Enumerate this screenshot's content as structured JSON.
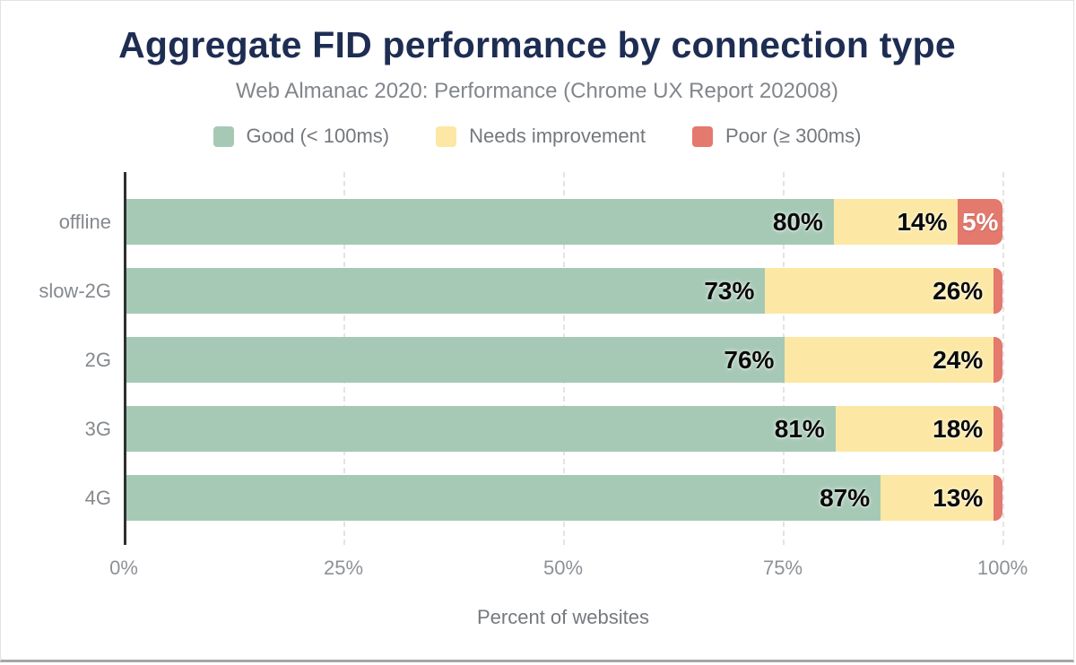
{
  "header": {
    "title": "Aggregate FID performance by connection type",
    "subtitle": "Web Almanac 2020: Performance (Chrome UX Report 202008)"
  },
  "colors": {
    "good": "#a6c9b5",
    "needs_improvement": "#fce8a4",
    "poor": "#e4796d",
    "title_text": "#1e2d52",
    "axis_text": "#8d9196",
    "grid": "#e4e4e4"
  },
  "legend": [
    {
      "key": "good",
      "label": "Good (< 100ms)",
      "color": "#a6c9b5"
    },
    {
      "key": "needs_improvement",
      "label": "Needs improvement",
      "color": "#fce8a4"
    },
    {
      "key": "poor",
      "label": "Poor (≥ 300ms)",
      "color": "#e4796d"
    }
  ],
  "chart_data": {
    "type": "bar",
    "orientation": "horizontal",
    "stacked": true,
    "title": "Aggregate FID performance by connection type",
    "subtitle": "Web Almanac 2020: Performance (Chrome UX Report 202008)",
    "categories": [
      "offline",
      "slow-2G",
      "2G",
      "3G",
      "4G"
    ],
    "series": [
      {
        "name": "Good (< 100ms)",
        "key": "good",
        "color": "#a6c9b5",
        "align": "right",
        "values": [
          80,
          73,
          76,
          81,
          87
        ]
      },
      {
        "name": "Needs improvement",
        "key": "needs_improvement",
        "color": "#fce8a4",
        "align": "right",
        "values": [
          14,
          26,
          24,
          18,
          13
        ]
      },
      {
        "name": "Poor (≥ 300ms)",
        "key": "poor",
        "color": "#e4796d",
        "align": "center",
        "values": [
          5,
          1,
          1,
          1,
          1
        ]
      }
    ],
    "segment_labels": [
      [
        "80%",
        "14%",
        "5%"
      ],
      [
        "73%",
        "26%",
        ""
      ],
      [
        "76%",
        "24%",
        ""
      ],
      [
        "81%",
        "18%",
        ""
      ],
      [
        "87%",
        "13%",
        ""
      ]
    ],
    "xlabel": "Percent of websites",
    "x_ticks": [
      "0%",
      "25%",
      "50%",
      "75%",
      "100%"
    ],
    "xlim": [
      0,
      100
    ],
    "grid": "dashed-vertical",
    "legend_position": "top"
  }
}
